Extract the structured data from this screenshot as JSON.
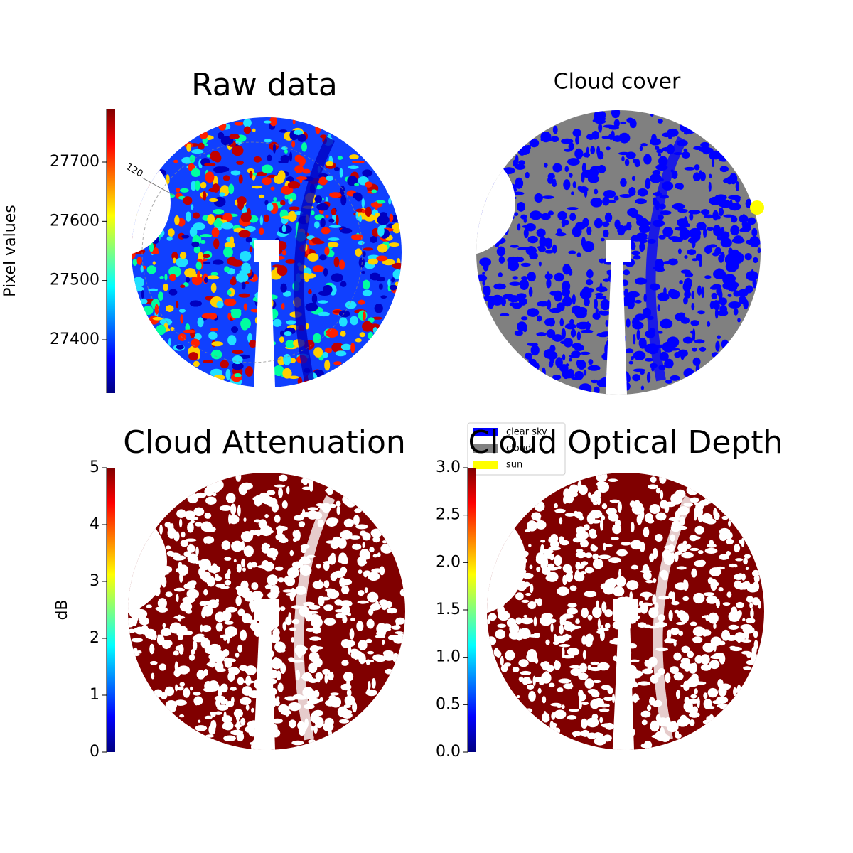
{
  "chart_data": [
    {
      "type": "image",
      "title": "Raw data",
      "annotation": "120",
      "colorbar": {
        "label": "Pixel values",
        "colormap": "jet",
        "lim": [
          27310,
          27790
        ],
        "ticks": [
          27400,
          27500,
          27600,
          27700
        ]
      }
    },
    {
      "type": "image",
      "title": "Cloud cover",
      "legend": [
        {
          "name": "clear sky",
          "color": "#0000ff"
        },
        {
          "name": "cloud",
          "color": "#808080"
        },
        {
          "name": "sun",
          "color": "#ffff00"
        }
      ]
    },
    {
      "type": "image",
      "title": "Cloud Attenuation",
      "colorbar": {
        "label": "dB",
        "colormap": "jet",
        "lim": [
          0,
          5
        ],
        "ticks": [
          0,
          1,
          2,
          3,
          4,
          5
        ]
      }
    },
    {
      "type": "image",
      "title": "Cloud Optical Depth",
      "colorbar": {
        "colormap": "jet",
        "lim": [
          0,
          3
        ],
        "ticks": [
          {
            "value": 0,
            "label": "0.0"
          },
          0.5,
          {
            "value": 1,
            "label": "1.0"
          },
          1.5,
          {
            "value": 2,
            "label": "2.0"
          },
          2.5,
          {
            "value": 3,
            "label": "3.0"
          }
        ]
      }
    }
  ]
}
